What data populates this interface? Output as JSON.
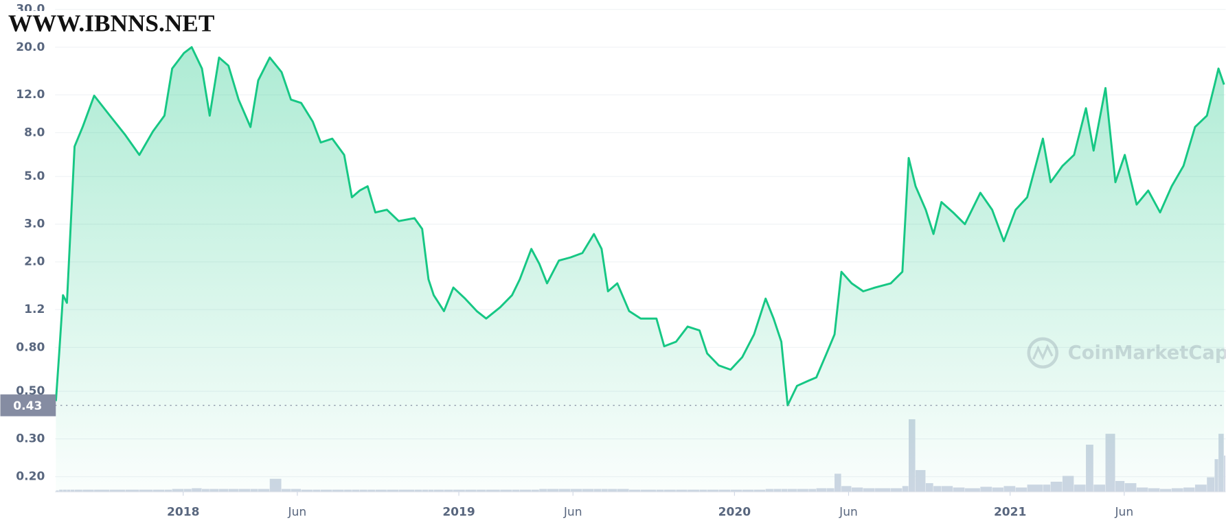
{
  "chart_data": {
    "type": "line",
    "brand": "CoinMarketCap",
    "log_y": true,
    "grid": true,
    "ylim": [
      0.17,
      30
    ],
    "yticks": [
      {
        "value": 0.2,
        "label": "0.20"
      },
      {
        "value": 0.3,
        "label": "0.30"
      },
      {
        "value": 0.5,
        "label": "0.50"
      },
      {
        "value": 0.8,
        "label": "0.80"
      },
      1.2,
      {
        "value": 2,
        "label": "2.0"
      },
      {
        "value": 3,
        "label": "3.0"
      },
      {
        "value": 5,
        "label": "5.0"
      },
      {
        "value": 8,
        "label": "8.0"
      },
      {
        "value": 12,
        "label": "12.0"
      },
      {
        "value": 20,
        "label": "20.0"
      },
      {
        "value": 30,
        "label": "30.0"
      }
    ],
    "y2lim": [
      0,
      100
    ],
    "xlim": [
      2017.535,
      2021.782
    ],
    "xticks": [
      2018,
      {
        "value": 2018.414,
        "label": "Jun"
      },
      2019,
      {
        "value": 2019.414,
        "label": "Jun"
      },
      2020,
      {
        "value": 2020.414,
        "label": "Jun"
      },
      2021,
      {
        "value": 2021.414,
        "label": "Jun"
      }
    ],
    "reference_line": 0.43,
    "x": [
      2017.538,
      2017.55,
      2017.564,
      2017.578,
      2017.592,
      2017.606,
      2017.635,
      2017.677,
      2017.734,
      2017.79,
      2017.841,
      2017.89,
      2017.932,
      2017.96,
      2018.003,
      2018.031,
      2018.068,
      2018.096,
      2018.13,
      2018.164,
      2018.201,
      2018.244,
      2018.272,
      2018.314,
      2018.357,
      2018.391,
      2018.428,
      2018.47,
      2018.499,
      2018.541,
      2018.584,
      2018.612,
      2018.64,
      2018.669,
      2018.697,
      2018.739,
      2018.782,
      2018.839,
      2018.867,
      2018.89,
      2018.909,
      2018.946,
      2018.98,
      2019.023,
      2019.065,
      2019.099,
      2019.15,
      2019.193,
      2019.221,
      2019.263,
      2019.292,
      2019.32,
      2019.363,
      2019.405,
      2019.448,
      2019.49,
      2019.518,
      2019.541,
      2019.575,
      2019.618,
      2019.66,
      2019.717,
      2019.745,
      2019.788,
      2019.83,
      2019.873,
      2019.901,
      2019.943,
      2019.986,
      2020.028,
      2020.071,
      2020.113,
      2020.142,
      2020.17,
      2020.193,
      2020.227,
      2020.269,
      2020.297,
      2020.334,
      2020.363,
      2020.388,
      2020.425,
      2020.467,
      2020.51,
      2020.567,
      2020.609,
      2020.632,
      2020.657,
      2020.694,
      2020.722,
      2020.751,
      2020.793,
      2020.836,
      2020.892,
      2020.935,
      2020.977,
      2021.02,
      2021.062,
      2021.119,
      2021.147,
      2021.19,
      2021.232,
      2021.275,
      2021.303,
      2021.346,
      2021.382,
      2021.416,
      2021.459,
      2021.501,
      2021.544,
      2021.586,
      2021.629,
      2021.671,
      2021.714,
      2021.742,
      2021.756,
      2021.776
    ],
    "series": [
      {
        "type": "line",
        "color": "#16c784",
        "values": [
          0.45,
          0.75,
          1.4,
          1.29,
          2.98,
          6.9,
          8.5,
          11.9,
          9.6,
          7.8,
          6.3,
          8.1,
          9.6,
          15.9,
          18.8,
          20.0,
          15.9,
          9.6,
          17.9,
          16.4,
          11.4,
          8.5,
          14.0,
          17.9,
          15.3,
          11.4,
          11.0,
          9.0,
          7.2,
          7.5,
          6.3,
          4.0,
          4.3,
          4.5,
          3.4,
          3.5,
          3.1,
          3.2,
          2.85,
          1.66,
          1.4,
          1.18,
          1.52,
          1.35,
          1.18,
          1.09,
          1.23,
          1.4,
          1.66,
          2.3,
          1.96,
          1.59,
          2.03,
          2.1,
          2.2,
          2.7,
          2.3,
          1.46,
          1.59,
          1.18,
          1.09,
          1.09,
          0.81,
          0.85,
          1.0,
          0.96,
          0.75,
          0.66,
          0.63,
          0.72,
          0.92,
          1.35,
          1.09,
          0.85,
          0.43,
          0.53,
          0.56,
          0.58,
          0.75,
          0.92,
          1.8,
          1.59,
          1.46,
          1.52,
          1.59,
          1.8,
          6.1,
          4.5,
          3.5,
          2.7,
          3.8,
          3.4,
          3.0,
          4.2,
          3.5,
          2.5,
          3.5,
          4.0,
          7.5,
          4.7,
          5.6,
          6.3,
          10.4,
          6.6,
          12.9,
          4.7,
          6.3,
          3.7,
          4.3,
          3.4,
          4.5,
          5.6,
          8.5,
          9.6,
          13.4,
          15.9,
          13.4
        ]
      },
      {
        "type": "bar",
        "axis": "y2",
        "color": "#cfd6e4",
        "values": [
          2,
          3,
          3,
          3,
          3,
          3,
          3,
          3,
          3,
          3,
          3,
          3,
          3,
          4,
          4,
          5,
          4,
          4,
          4,
          4,
          4,
          4,
          4,
          18,
          4,
          4,
          3,
          3,
          3,
          3,
          3,
          3,
          3,
          3,
          3,
          3,
          3,
          3,
          3,
          3,
          3,
          3,
          3,
          3,
          3,
          3,
          3,
          3,
          3,
          3,
          4,
          4,
          4,
          4,
          4,
          4,
          4,
          4,
          4,
          3,
          3,
          3,
          3,
          3,
          3,
          3,
          3,
          3,
          3,
          3,
          3,
          4,
          4,
          4,
          4,
          4,
          4,
          5,
          5,
          25,
          8,
          6,
          5,
          5,
          5,
          8,
          100,
          30,
          12,
          8,
          8,
          6,
          5,
          7,
          6,
          8,
          6,
          10,
          10,
          14,
          22,
          10,
          65,
          10,
          80,
          15,
          12,
          6,
          5,
          4,
          5,
          6,
          10,
          20,
          45,
          80,
          50
        ]
      }
    ]
  },
  "overlay": {
    "site": "WWW.IBNNS.NET"
  }
}
